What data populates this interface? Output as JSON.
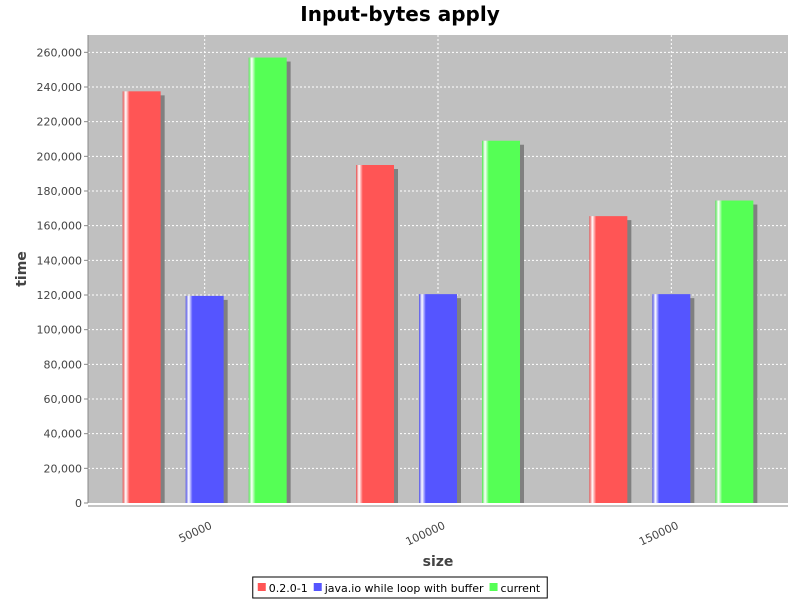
{
  "chart_data": {
    "type": "bar",
    "title": "Input-bytes apply",
    "xlabel": "size",
    "ylabel": "time",
    "categories": [
      "50000",
      "100000",
      "150000"
    ],
    "series": [
      {
        "name": "0.2.0-1",
        "color": "#ff5555",
        "values": [
          237500,
          195000,
          165500
        ]
      },
      {
        "name": "java.io while loop with buffer",
        "color": "#5555ff",
        "values": [
          119500,
          120500,
          120500
        ]
      },
      {
        "name": "current",
        "color": "#55ff55",
        "values": [
          257000,
          209000,
          174500
        ]
      }
    ],
    "ylim": [
      0,
      270000
    ],
    "yticks": [
      0,
      20000,
      40000,
      60000,
      80000,
      100000,
      120000,
      140000,
      160000,
      180000,
      200000,
      220000,
      240000,
      260000
    ],
    "ytick_labels": [
      "0",
      "20,000",
      "40,000",
      "60,000",
      "80,000",
      "100,000",
      "120,000",
      "140,000",
      "160,000",
      "180,000",
      "200,000",
      "220,000",
      "240,000",
      "260,000"
    ],
    "grid": true,
    "legend": "bottom",
    "plot_background": "#c0c0c0"
  }
}
